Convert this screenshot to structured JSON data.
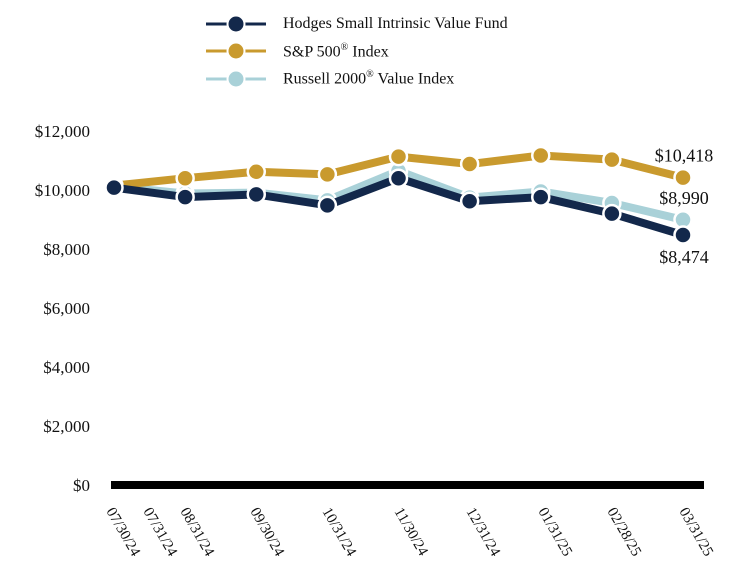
{
  "chart_data": {
    "type": "line",
    "title": "",
    "xlabel": "",
    "ylabel": "",
    "ylim": [
      0,
      12000
    ],
    "yticks": [
      0,
      2000,
      4000,
      6000,
      8000,
      10000,
      12000
    ],
    "ytick_labels": [
      "$0",
      "$2,000",
      "$4,000",
      "$6,000",
      "$8,000",
      "$10,000",
      "$12,000"
    ],
    "tick_dates": [
      "07/30/24",
      "07/31/24",
      "08/31/24",
      "09/30/24",
      "10/31/24",
      "11/30/24",
      "12/31/24",
      "01/31/25",
      "02/28/25",
      "03/31/25"
    ],
    "categories": [
      "07/31/24",
      "08/31/24",
      "09/30/24",
      "10/31/24",
      "11/30/24",
      "12/31/24",
      "01/31/25",
      "02/28/25",
      "03/31/25"
    ],
    "series": [
      {
        "name": "Hodges Small Intrinsic Value Fund",
        "color": "#13284b",
        "values": [
          10080,
          9760,
          9850,
          9480,
          10400,
          9620,
          9760,
          9200,
          8474
        ],
        "end_label": "$8,474"
      },
      {
        "name": "S&P 500",
        "superscript": "®",
        "name_suffix": " Index",
        "color": "#c99a2e",
        "values": [
          10150,
          10400,
          10620,
          10530,
          11130,
          10880,
          11170,
          11030,
          10418
        ],
        "end_label": "$10,418"
      },
      {
        "name": "Russell 2000",
        "superscript": "®",
        "name_suffix": " Value Index",
        "color": "#a9d1d8",
        "values": [
          10120,
          9880,
          9910,
          9650,
          10650,
          9740,
          9950,
          9560,
          8990
        ],
        "end_label": "$8,990"
      }
    ],
    "legend_position": "top-center",
    "grid": false
  }
}
